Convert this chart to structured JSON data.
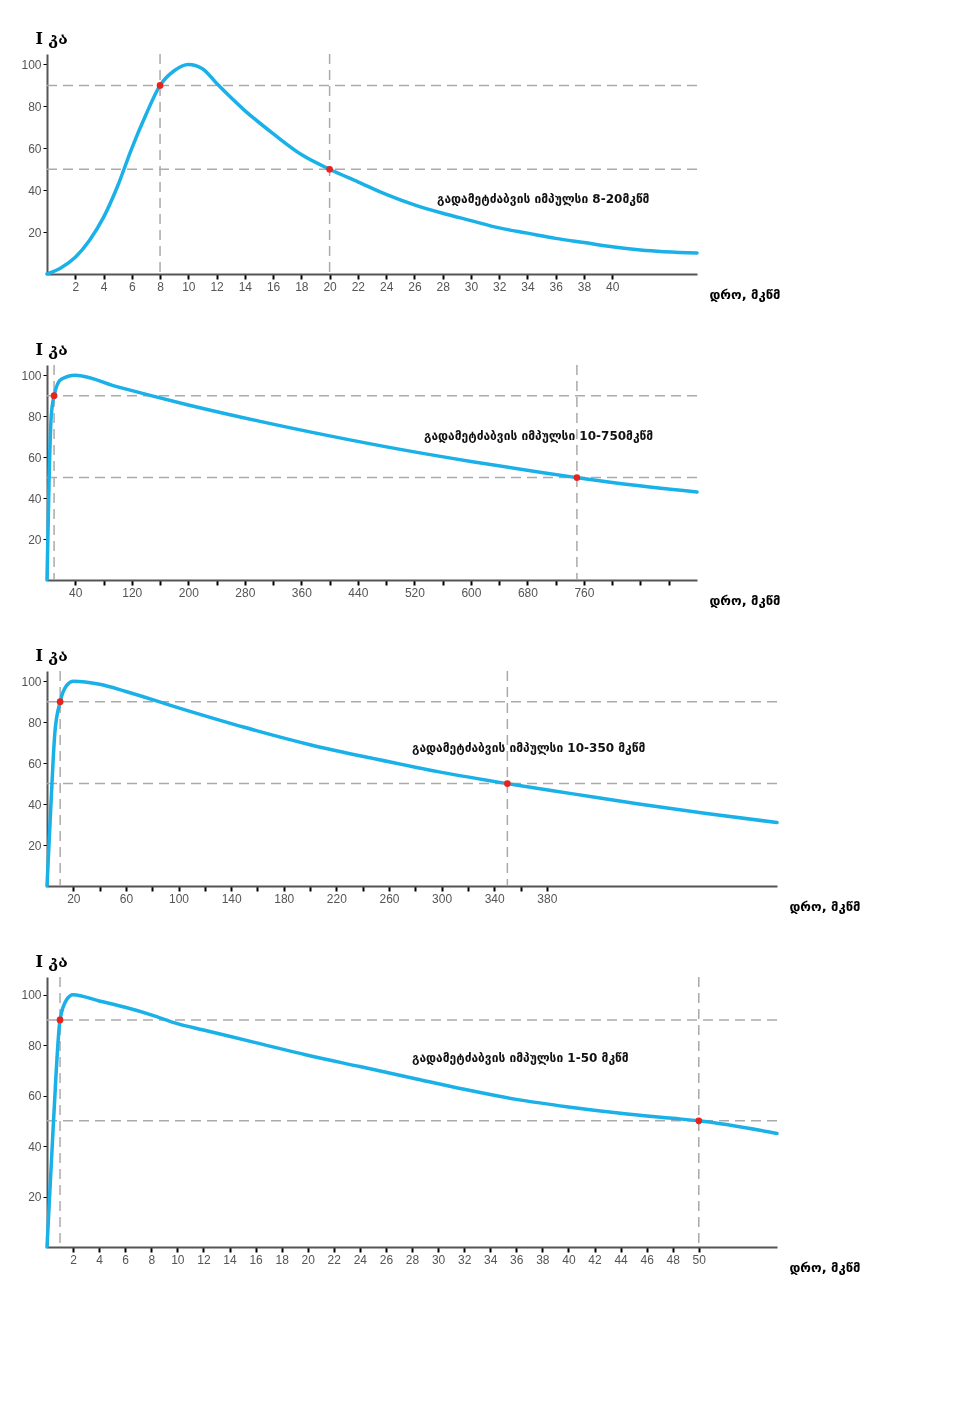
{
  "chart_data": [
    {
      "type": "line",
      "ylabel": "I კა",
      "xlabel": "დრო, მკწმ",
      "annotations": [
        "გადამეტძაბვის იმპულსი 8-20მკწმ"
      ],
      "xlim": [
        0,
        46
      ],
      "ylim": [
        0,
        105
      ],
      "xticks": [
        2,
        4,
        6,
        8,
        10,
        12,
        14,
        16,
        18,
        20,
        22,
        24,
        26,
        28,
        30,
        32,
        34,
        36,
        38,
        40
      ],
      "yticks": [
        20,
        40,
        60,
        80,
        100
      ],
      "line_style": "solid",
      "series": [
        {
          "type": "line",
          "color": "#1ab0e8",
          "x": [
            0,
            1,
            2,
            3,
            4,
            5,
            6,
            7,
            8,
            9,
            10,
            11,
            12,
            14,
            16,
            18,
            20,
            22,
            24,
            26,
            28,
            30,
            32,
            34,
            36,
            38,
            40,
            42,
            46
          ],
          "values": [
            0,
            3,
            8,
            16,
            27,
            42,
            60,
            76,
            90,
            97,
            100,
            98,
            91,
            78,
            67,
            57,
            50,
            44,
            38,
            33,
            29,
            25.5,
            22,
            19.5,
            17,
            15,
            13,
            11.5,
            10
          ]
        },
        {
          "type": "scatter",
          "color": "#e8231e",
          "x": [
            8,
            20
          ],
          "values": [
            90,
            50
          ]
        }
      ],
      "ref_lines": [
        {
          "axis": "y",
          "value": 90,
          "color": "#aaaaaa",
          "line_style": "dashed"
        },
        {
          "axis": "y",
          "value": 50,
          "color": "#aaaaaa",
          "line_style": "dashed"
        },
        {
          "axis": "x",
          "value": 8,
          "color": "#aaaaaa",
          "line_style": "dashed"
        },
        {
          "axis": "x",
          "value": 20,
          "color": "#aaaaaa",
          "line_style": "dashed"
        }
      ]
    },
    {
      "type": "line",
      "ylabel": "I კა",
      "xlabel": "დრო, მკწმ",
      "annotations": [
        "გადამეტძაბვის იმპულსი 10-750მკწმ"
      ],
      "xlim": [
        0,
        920
      ],
      "ylim": [
        0,
        105
      ],
      "xticks": [
        40,
        {
          "value": 80,
          "label": null
        },
        120,
        {
          "value": 160,
          "label": null
        },
        200,
        {
          "value": 240,
          "label": null
        },
        280,
        {
          "value": 320,
          "label": null
        },
        360,
        {
          "value": 400,
          "label": null
        },
        440,
        {
          "value": 480,
          "label": null
        },
        520,
        {
          "value": 560,
          "label": null
        },
        600,
        {
          "value": 640,
          "label": null
        },
        680,
        {
          "value": 720,
          "label": null
        },
        760,
        {
          "value": 800,
          "label": null
        },
        {
          "value": 840,
          "label": null
        },
        {
          "value": 880,
          "label": null
        }
      ],
      "yticks": [
        20,
        40,
        60,
        80,
        100
      ],
      "line_style": "solid",
      "series": [
        {
          "type": "line",
          "color": "#1ab0e8",
          "x": [
            0,
            3,
            6,
            10,
            20,
            40,
            100,
            200,
            300,
            400,
            500,
            600,
            700,
            750,
            800,
            920
          ],
          "values": [
            0,
            50,
            80,
            90,
            98,
            100,
            94.3,
            85.5,
            77.6,
            70.4,
            63.8,
            57.9,
            52.5,
            50,
            47.6,
            43
          ]
        },
        {
          "type": "scatter",
          "color": "#e8231e",
          "x": [
            10,
            750
          ],
          "values": [
            90,
            50
          ]
        }
      ],
      "ref_lines": [
        {
          "axis": "y",
          "value": 90,
          "color": "#aaaaaa",
          "line_style": "dashed"
        },
        {
          "axis": "y",
          "value": 50,
          "color": "#aaaaaa",
          "line_style": "dashed"
        },
        {
          "axis": "x",
          "value": 10,
          "color": "#aaaaaa",
          "line_style": "dashed"
        },
        {
          "axis": "x",
          "value": 750,
          "color": "#aaaaaa",
          "line_style": "dashed"
        }
      ]
    },
    {
      "type": "line",
      "ylabel": "I კა",
      "xlabel": "დრო, მკწმ",
      "annotations": [
        "გადამეტძაბვის იმპულსი 10-350 მკწმ"
      ],
      "xlim": [
        0,
        555
      ],
      "ylim": [
        0,
        105
      ],
      "xticks": [
        20,
        {
          "value": 40,
          "label": null
        },
        60,
        {
          "value": 80,
          "label": null
        },
        100,
        {
          "value": 120,
          "label": null
        },
        140,
        {
          "value": 160,
          "label": null
        },
        180,
        {
          "value": 200,
          "label": null
        },
        220,
        {
          "value": 240,
          "label": null
        },
        260,
        {
          "value": 280,
          "label": null
        },
        300,
        {
          "value": 320,
          "label": null
        },
        340,
        {
          "value": 360,
          "label": null
        },
        380
      ],
      "yticks": [
        20,
        40,
        60,
        80,
        100
      ],
      "line_style": "solid",
      "series": [
        {
          "type": "line",
          "color": "#1ab0e8",
          "x": [
            0,
            3,
            6,
            10,
            15,
            20,
            40,
            60,
            100,
            150,
            200,
            250,
            300,
            350,
            400,
            450,
            500,
            555
          ],
          "values": [
            0,
            40,
            75,
            90,
            98,
            100,
            98.5,
            95,
            87,
            77.5,
            69,
            62,
            55.5,
            50,
            45,
            40,
            35.5,
            31
          ]
        },
        {
          "type": "scatter",
          "color": "#e8231e",
          "x": [
            10,
            350
          ],
          "values": [
            90,
            50
          ]
        }
      ],
      "ref_lines": [
        {
          "axis": "y",
          "value": 90,
          "color": "#aaaaaa",
          "line_style": "dashed"
        },
        {
          "axis": "y",
          "value": 50,
          "color": "#aaaaaa",
          "line_style": "dashed"
        },
        {
          "axis": "x",
          "value": 10,
          "color": "#aaaaaa",
          "line_style": "dashed"
        },
        {
          "axis": "x",
          "value": 350,
          "color": "#aaaaaa",
          "line_style": "dashed"
        }
      ]
    },
    {
      "type": "line",
      "ylabel": "I კა",
      "xlabel": "დრო, მკწმ",
      "annotations": [
        "გადამეტძაბვის იმპულსი 1-50 მკწმ"
      ],
      "xlim": [
        0,
        56
      ],
      "ylim": [
        0,
        107
      ],
      "xticks": [
        2,
        4,
        6,
        8,
        10,
        12,
        14,
        16,
        18,
        20,
        22,
        24,
        26,
        28,
        30,
        32,
        34,
        36,
        38,
        40,
        42,
        44,
        46,
        48,
        50
      ],
      "yticks": [
        20,
        40,
        60,
        80,
        100
      ],
      "line_style": "solid",
      "series": [
        {
          "type": "line",
          "color": "#1ab0e8",
          "x": [
            0,
            0.5,
            1,
            1.5,
            2,
            4,
            6,
            8,
            10,
            12,
            16,
            20,
            24,
            28,
            32,
            36,
            40,
            44,
            48,
            50,
            56
          ],
          "values": [
            0,
            50,
            90,
            98,
            100,
            97.5,
            95,
            92,
            88.5,
            86,
            81,
            76,
            71.5,
            67,
            62.5,
            58.5,
            55.5,
            53,
            51,
            50,
            45
          ]
        },
        {
          "type": "scatter",
          "color": "#e8231e",
          "x": [
            1,
            50
          ],
          "values": [
            90,
            50
          ]
        }
      ],
      "ref_lines": [
        {
          "axis": "y",
          "value": 90,
          "color": "#aaaaaa",
          "line_style": "dashed"
        },
        {
          "axis": "y",
          "value": 50,
          "color": "#aaaaaa",
          "line_style": "dashed"
        },
        {
          "axis": "x",
          "value": 1,
          "color": "#aaaaaa",
          "line_style": "dashed"
        },
        {
          "axis": "x",
          "value": 50,
          "color": "#aaaaaa",
          "line_style": "dashed"
        }
      ]
    }
  ]
}
